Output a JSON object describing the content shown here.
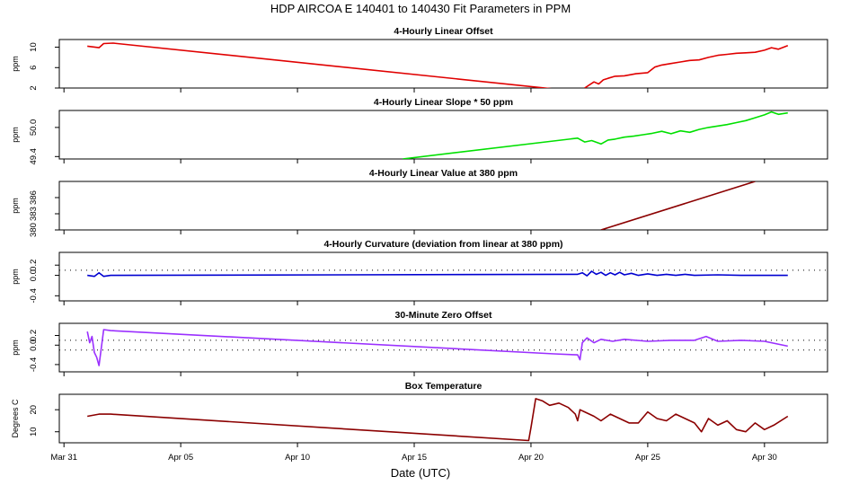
{
  "title": "HDP   AIRCOA E   140401 to 140430   Fit Parameters in PPM",
  "xlabel": "Date (UTC)",
  "x_ticks": [
    {
      "day": 0,
      "label": "Mar 31"
    },
    {
      "day": 5,
      "label": "Apr 05"
    },
    {
      "day": 10,
      "label": "Apr 10"
    },
    {
      "day": 15,
      "label": "Apr 15"
    },
    {
      "day": 20,
      "label": "Apr 20"
    },
    {
      "day": 25,
      "label": "Apr 25"
    },
    {
      "day": 30,
      "label": "Apr 30"
    }
  ],
  "chart_data": [
    {
      "type": "line",
      "title": "4-Hourly Linear Offset",
      "ylabel": "ppm",
      "color": "#e00000",
      "ylim": [
        2,
        11.5
      ],
      "yticks": [
        {
          "value": 2,
          "label": "2"
        },
        {
          "value": 6,
          "label": "6"
        },
        {
          "value": 10,
          "label": "10"
        }
      ],
      "hlines": [],
      "series": [
        {
          "name": "offset",
          "x": [
            1.0,
            1.5,
            1.7,
            2.1,
            21.0
          ],
          "y": [
            10.2,
            9.9,
            10.7,
            10.8,
            1.8
          ]
        },
        {
          "name": "offset-2",
          "x": [
            22.3,
            22.5,
            22.7,
            22.9,
            23.1,
            23.3,
            23.6,
            24.0,
            24.5,
            25.0,
            25.3,
            25.6,
            26.0,
            26.4,
            26.8,
            27.2,
            27.6,
            28.0,
            28.4,
            28.8,
            29.2,
            29.6,
            30.0,
            30.3,
            30.6,
            31.0
          ],
          "y": [
            2.0,
            2.6,
            3.2,
            2.8,
            3.6,
            3.9,
            4.3,
            4.4,
            4.8,
            5.0,
            6.1,
            6.5,
            6.8,
            7.1,
            7.4,
            7.5,
            8.0,
            8.4,
            8.6,
            8.8,
            8.9,
            9.0,
            9.4,
            9.9,
            9.6,
            10.3
          ]
        }
      ]
    },
    {
      "type": "line",
      "title": "4-Hourly Linear Slope * 50 ppm",
      "ylabel": "ppm",
      "color": "#00e000",
      "ylim": [
        49.35,
        50.35
      ],
      "yticks": [
        {
          "value": 49.4,
          "label": "49.4"
        },
        {
          "value": 50.0,
          "label": "50.0"
        }
      ],
      "hlines": [],
      "series": [
        {
          "name": "slope",
          "x": [
            14.5,
            22.0,
            22.3,
            22.6,
            23.0,
            23.3,
            23.6,
            24.0,
            24.4,
            24.8,
            25.2,
            25.6,
            26.0,
            26.4,
            26.8,
            27.2,
            27.6,
            28.0,
            28.4,
            28.8,
            29.2,
            29.6,
            30.0,
            30.3,
            30.6,
            31.0
          ],
          "y": [
            49.35,
            49.78,
            49.7,
            49.73,
            49.66,
            49.74,
            49.76,
            49.8,
            49.82,
            49.85,
            49.88,
            49.92,
            49.87,
            49.93,
            49.9,
            49.96,
            50.0,
            50.03,
            50.06,
            50.1,
            50.14,
            50.2,
            50.26,
            50.32,
            50.27,
            50.3
          ]
        }
      ]
    },
    {
      "type": "line",
      "title": "4-Hourly Linear Value at 380 ppm",
      "ylabel": "ppm",
      "color": "#8b0000",
      "ylim": [
        380,
        389
      ],
      "yticks": [
        {
          "value": 380,
          "label": "380"
        },
        {
          "value": 383,
          "label": "383"
        },
        {
          "value": 386,
          "label": "386"
        }
      ],
      "hlines": [],
      "series": [
        {
          "name": "value",
          "x": [
            23.0,
            29.6
          ],
          "y": [
            380,
            389
          ]
        }
      ]
    },
    {
      "type": "line",
      "title": "4-Hourly Curvature (deviation from linear at 380 ppm)",
      "ylabel": "ppm",
      "color": "#0000d0",
      "ylim": [
        -0.5,
        0.45
      ],
      "yticks": [
        {
          "value": -0.4,
          "label": "-0.4"
        },
        {
          "value": 0.0,
          "label": "0.0"
        },
        {
          "value": 0.2,
          "label": "0.2"
        }
      ],
      "hlines": [
        0.1
      ],
      "series": [
        {
          "name": "curvature",
          "x": [
            1.0,
            1.3,
            1.5,
            1.7,
            2.0,
            22.0,
            22.2,
            22.4,
            22.6,
            22.8,
            23.0,
            23.2,
            23.4,
            23.6,
            23.8,
            24.0,
            24.3,
            24.6,
            25.0,
            25.4,
            25.8,
            26.2,
            26.6,
            27.0,
            28.0,
            29.0,
            31.0
          ],
          "y": [
            0.0,
            -0.02,
            0.05,
            -0.02,
            0.0,
            0.02,
            0.05,
            -0.01,
            0.08,
            0.02,
            0.06,
            0.0,
            0.05,
            0.01,
            0.06,
            0.01,
            0.04,
            0.0,
            0.03,
            0.0,
            0.02,
            0.0,
            0.02,
            0.0,
            0.01,
            0.0,
            0.0
          ]
        }
      ]
    },
    {
      "type": "line",
      "title": "30-Minute Zero Offset",
      "ylabel": "ppm",
      "color": "#9b30ff",
      "ylim": [
        -0.55,
        0.45
      ],
      "yticks": [
        {
          "value": -0.4,
          "label": "-0.4"
        },
        {
          "value": 0.0,
          "label": "0.0"
        },
        {
          "value": 0.2,
          "label": "0.2"
        }
      ],
      "hlines": [
        0.1,
        -0.1
      ],
      "series": [
        {
          "name": "zero-offset",
          "x": [
            1.0,
            1.1,
            1.2,
            1.3,
            1.4,
            1.5,
            1.6,
            1.7,
            2.0,
            21.0,
            22.0,
            22.1,
            22.2,
            22.4,
            22.7,
            23.0,
            23.5,
            24.0,
            25.0,
            26.0,
            27.0,
            27.5,
            28.0,
            29.0,
            30.0,
            31.0
          ],
          "y": [
            0.28,
            0.05,
            0.18,
            -0.15,
            -0.25,
            -0.42,
            -0.05,
            0.32,
            0.3,
            -0.18,
            -0.2,
            -0.3,
            0.05,
            0.15,
            0.05,
            0.12,
            0.08,
            0.12,
            0.08,
            0.1,
            0.1,
            0.18,
            0.08,
            0.1,
            0.08,
            -0.02
          ]
        }
      ]
    },
    {
      "type": "line",
      "title": "Box Temperature",
      "ylabel": "Degrees C",
      "color": "#8b0000",
      "ylim": [
        5,
        27
      ],
      "yticks": [
        {
          "value": 10,
          "label": "10"
        },
        {
          "value": 20,
          "label": "20"
        }
      ],
      "hlines": [],
      "series": [
        {
          "name": "temperature",
          "x": [
            1.0,
            1.5,
            2.0,
            19.9,
            20.0,
            20.2,
            20.5,
            20.8,
            21.2,
            21.6,
            21.9,
            22.0,
            22.1,
            22.3,
            22.7,
            23.0,
            23.4,
            23.8,
            24.2,
            24.6,
            25.0,
            25.4,
            25.8,
            26.2,
            26.6,
            27.0,
            27.3,
            27.6,
            28.0,
            28.4,
            28.8,
            29.2,
            29.6,
            30.0,
            30.4,
            31.0
          ],
          "y": [
            17,
            18,
            18,
            6,
            12,
            25,
            24,
            22,
            23,
            21,
            18,
            15,
            20,
            19,
            17,
            15,
            18,
            16,
            14,
            14,
            19,
            16,
            15,
            18,
            16,
            14,
            10,
            16,
            13,
            15,
            11,
            10,
            14,
            11,
            13,
            17
          ]
        }
      ]
    }
  ]
}
